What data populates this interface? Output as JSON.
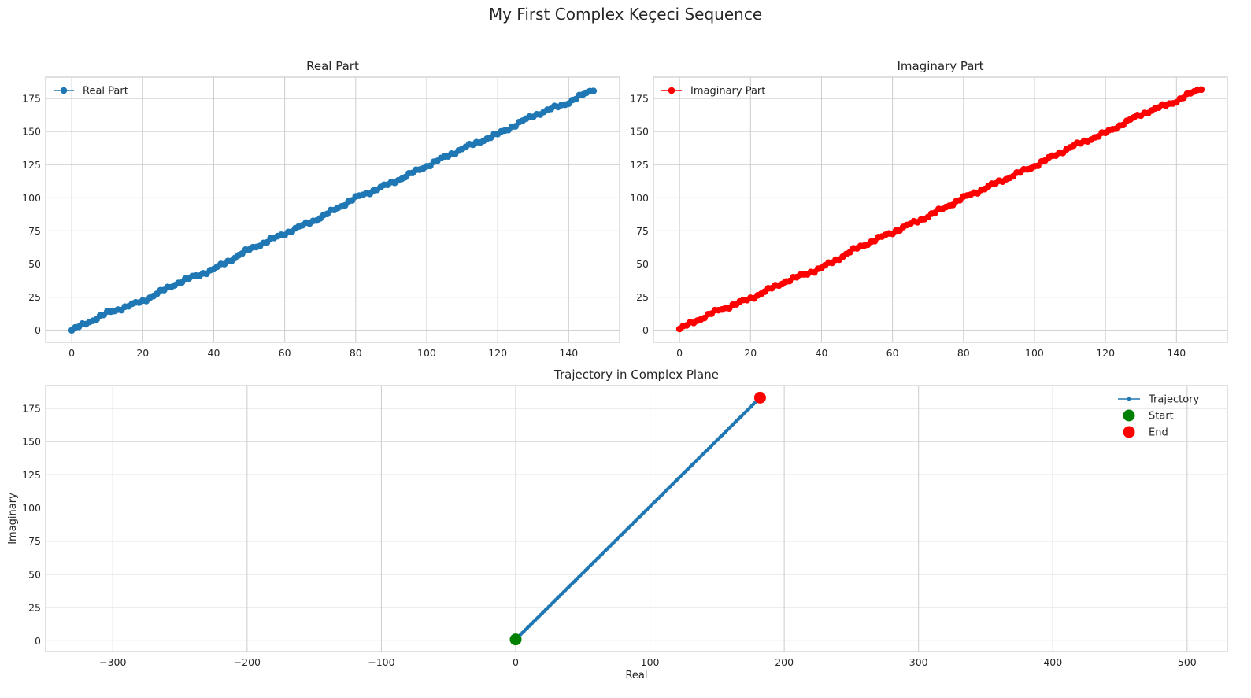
{
  "figure": {
    "suptitle": "My First Complex Keçeci Sequence"
  },
  "colors": {
    "real": "#1f77b4",
    "imag": "#ff0000",
    "start": "#008000",
    "end": "#ff0000",
    "grid": "#cccccc",
    "spine": "#cccccc"
  },
  "chart_data": [
    {
      "type": "line",
      "title": "Real Part",
      "xlabel": "",
      "ylabel": "",
      "xlim": [
        -7.35,
        154.35
      ],
      "ylim": [
        -9.1,
        191.1
      ],
      "xticks": [
        0,
        20,
        40,
        60,
        80,
        100,
        120,
        140
      ],
      "yticks": [
        0,
        25,
        50,
        75,
        100,
        125,
        150,
        175
      ],
      "grid": true,
      "legend_position": "upper-left",
      "series": [
        {
          "name": "Real Part",
          "marker": "circle",
          "x_start": 0,
          "x_end": 147,
          "keypoints_x": [
            0,
            10,
            20,
            30,
            40,
            50,
            60,
            70,
            80,
            90,
            100,
            110,
            120,
            130,
            140,
            147
          ],
          "keypoints_y": [
            0,
            13,
            22,
            36,
            46,
            61,
            73,
            85,
            100,
            111,
            124,
            137,
            148,
            162,
            172,
            182
          ],
          "wobble_amplitude": 1.4
        }
      ]
    },
    {
      "type": "line",
      "title": "Imaginary Part",
      "xlabel": "",
      "ylabel": "",
      "xlim": [
        -7.35,
        154.35
      ],
      "ylim": [
        -9.1,
        191.1
      ],
      "xticks": [
        0,
        20,
        40,
        60,
        80,
        100,
        120,
        140
      ],
      "yticks": [
        0,
        25,
        50,
        75,
        100,
        125,
        150,
        175
      ],
      "grid": true,
      "legend_position": "upper-left",
      "series": [
        {
          "name": "Imaginary Part",
          "marker": "circle",
          "x_start": 0,
          "x_end": 147,
          "keypoints_x": [
            0,
            10,
            20,
            30,
            40,
            50,
            60,
            70,
            80,
            90,
            100,
            110,
            120,
            130,
            140,
            147
          ],
          "keypoints_y": [
            1,
            14,
            24,
            37,
            47,
            62,
            74,
            86,
            100,
            112,
            124,
            138,
            149,
            163,
            173,
            183
          ],
          "wobble_amplitude": 1.4
        }
      ]
    },
    {
      "type": "scatter",
      "title": "Trajectory in Complex Plane",
      "xlabel": "Real",
      "ylabel": "Imaginary",
      "xlim": [
        -350,
        530
      ],
      "ylim": [
        -8.1,
        192.1
      ],
      "xticks": [
        -300,
        -200,
        -100,
        0,
        100,
        200,
        300,
        400,
        500
      ],
      "yticks": [
        0,
        25,
        50,
        75,
        100,
        125,
        150,
        175
      ],
      "grid": true,
      "legend_position": "top-right",
      "series": [
        {
          "name": "Trajectory",
          "marker": "point",
          "x_start": 0,
          "x_end": 182,
          "y_start": 1,
          "y_end": 183,
          "count": 148
        },
        {
          "name": "Start",
          "x": 0,
          "y": 1
        },
        {
          "name": "End",
          "x": 182,
          "y": 183
        }
      ]
    }
  ]
}
